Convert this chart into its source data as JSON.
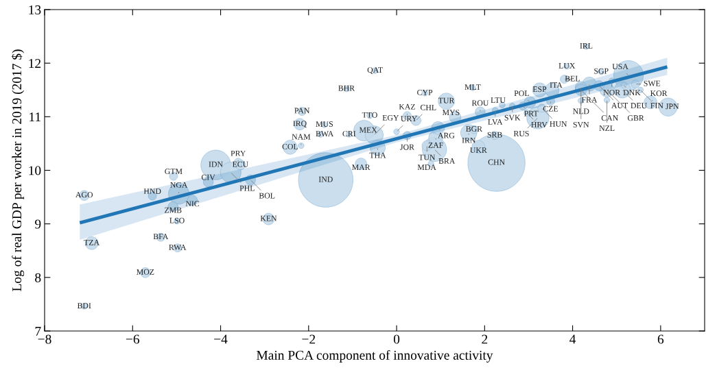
{
  "chart_data": {
    "type": "bubble",
    "xlabel": "Main PCA component of innovative activity",
    "ylabel": "Log of real GDP per worker in 2019 (2017 $)",
    "xlim": [
      -8,
      7
    ],
    "xticks": [
      -8,
      -6,
      -4,
      -2,
      0,
      2,
      4,
      6
    ],
    "ylim": [
      7,
      13
    ],
    "yticks": [
      7,
      8,
      9,
      10,
      11,
      12,
      13
    ],
    "grid": false,
    "series": [
      {
        "marker": "circle",
        "color": "#c4daeb",
        "x": [
          -7.1,
          -6.93,
          -7.1,
          -5.71,
          -5.36,
          -4.98,
          -4.99,
          -5.08,
          -5.55,
          -4.95,
          -4.64,
          -5.07,
          -4.28,
          -4.11,
          -3.55,
          -3.6,
          -3.77,
          -3.32,
          -2.91,
          -1.61,
          -2.42,
          -2.17,
          -2.15,
          -2.2,
          -1.64,
          -1.73,
          -1.08,
          -1.14,
          -0.49,
          -0.61,
          -0.74,
          -0.51,
          -0.43,
          -0.81,
          0.0,
          0.24,
          0.24,
          0.44,
          0.64,
          1.13,
          0.94,
          0.89,
          0.69,
          0.86,
          0.78,
          1.73,
          1.33,
          1.76,
          1.64,
          2.23,
          1.86,
          2.27,
          1.9,
          2.4,
          2.24,
          2.63,
          2.87,
          3.03,
          3.5,
          2.96,
          3.3,
          3.21,
          3.25,
          3.53,
          3.87,
          4.31,
          3.81,
          4.65,
          5.27,
          4.89,
          5.16,
          5.43,
          4.38,
          4.19,
          4.6,
          4.19,
          4.78,
          5.13,
          5.54,
          4.19,
          4.78,
          5.77,
          6.17
        ],
        "values": [
          9.53,
          8.64,
          7.46,
          8.09,
          8.75,
          8.55,
          9.05,
          9.32,
          9.52,
          9.56,
          9.44,
          9.89,
          9.78,
          10.1,
          10.1,
          10.15,
          9.96,
          9.82,
          9.09,
          9.82,
          10.43,
          10.46,
          11.1,
          10.86,
          10.85,
          10.67,
          10.67,
          11.52,
          11.86,
          11.02,
          10.74,
          10.66,
          10.42,
          10.12,
          10.72,
          10.65,
          11.02,
          10.93,
          11.44,
          11.29,
          10.79,
          10.61,
          10.46,
          10.39,
          10.12,
          11.54,
          10.99,
          10.76,
          10.7,
          10.65,
          10.44,
          10.14,
          11.09,
          11.22,
          11.12,
          11.2,
          11.2,
          11.27,
          11.29,
          11.07,
          11.16,
          10.98,
          11.5,
          11.5,
          11.94,
          12.31,
          11.7,
          11.84,
          11.77,
          11.67,
          11.59,
          11.61,
          11.61,
          11.55,
          11.58,
          11.5,
          11.5,
          11.5,
          11.5,
          11.3,
          11.31,
          11.27,
          11.18
        ],
        "sizes": [
          0.03,
          0.05,
          0.01,
          0.03,
          0.02,
          0.02,
          0.01,
          0.03,
          0.02,
          0.13,
          0.03,
          0.02,
          0.03,
          0.27,
          0.03,
          0.02,
          0.13,
          0.03,
          0.04,
          0.91,
          0.06,
          0.01,
          0.02,
          0.04,
          0.01,
          0.01,
          0.01,
          0.01,
          0.01,
          0.01,
          0.13,
          0.1,
          0.07,
          0.04,
          0.01,
          0.02,
          0.02,
          0.03,
          0.01,
          0.08,
          0.05,
          0.06,
          0.03,
          0.18,
          0.01,
          0.01,
          0.04,
          0.02,
          0.08,
          0.02,
          0.05,
          1.0,
          0.03,
          0.01,
          0.01,
          0.01,
          0.02,
          0.04,
          0.02,
          0.01,
          0.02,
          0.15,
          0.06,
          0.06,
          0.01,
          0.01,
          0.02,
          0.01,
          0.27,
          0.01,
          0.01,
          0.02,
          0.06,
          0.04,
          0.03,
          0.04,
          0.06,
          0.08,
          0.01,
          0.01,
          0.01,
          0.05,
          0.1
        ]
      },
      {
        "type": "line",
        "color": "#2176b5",
        "x": [
          -7.2,
          0,
          6.15
        ],
        "values": [
          9.02,
          10.59,
          11.93
        ],
        "lower": [
          8.7,
          10.52,
          11.78
        ],
        "upper": [
          9.36,
          10.66,
          12.1
        ]
      }
    ],
    "annotations": [
      {
        "text": "AGO",
        "x": -7.1,
        "y": 9.53
      },
      {
        "text": "TZA",
        "x": -6.93,
        "y": 8.64
      },
      {
        "text": "BDI",
        "x": -7.1,
        "y": 7.46
      },
      {
        "text": "MOZ",
        "x": -5.71,
        "y": 8.09
      },
      {
        "text": "BFA",
        "x": -5.36,
        "y": 8.75
      },
      {
        "text": "RWA",
        "x": -4.98,
        "y": 8.55
      },
      {
        "text": "LSO",
        "x": -4.99,
        "y": 9.05
      },
      {
        "text": "ZMB",
        "x": -5.08,
        "y": 9.32
      },
      {
        "text": "HND",
        "x": -5.55,
        "y": 9.52
      },
      {
        "text": "NGA",
        "x": -4.95,
        "y": 9.56
      },
      {
        "text": "NIC",
        "x": -4.64,
        "y": 9.44
      },
      {
        "text": "GTM",
        "x": -5.07,
        "y": 9.89
      },
      {
        "text": "CIV",
        "x": -4.28,
        "y": 9.78
      },
      {
        "text": "IDN",
        "x": -4.11,
        "y": 10.1
      },
      {
        "text": "ECU",
        "x": -3.55,
        "y": 10.1
      },
      {
        "text": "PRY",
        "x": -3.6,
        "y": 10.15
      },
      {
        "text": "PHL",
        "x": -3.77,
        "y": 9.96
      },
      {
        "text": "BOL",
        "x": -3.32,
        "y": 9.82
      },
      {
        "text": "KEN",
        "x": -2.91,
        "y": 9.09
      },
      {
        "text": "IND",
        "x": -1.61,
        "y": 9.82
      },
      {
        "text": "COL",
        "x": -2.42,
        "y": 10.43
      },
      {
        "text": "NAM",
        "x": -2.17,
        "y": 10.46
      },
      {
        "text": "PAN",
        "x": -2.15,
        "y": 11.1
      },
      {
        "text": "IRQ",
        "x": -2.2,
        "y": 10.86
      },
      {
        "text": "MUS",
        "x": -1.64,
        "y": 10.85
      },
      {
        "text": "BWA",
        "x": -1.73,
        "y": 10.67
      },
      {
        "text": "CRI",
        "x": -1.08,
        "y": 10.67
      },
      {
        "text": "BHR",
        "x": -1.14,
        "y": 11.52
      },
      {
        "text": "QAT",
        "x": -0.49,
        "y": 11.86
      },
      {
        "text": "TTO",
        "x": -0.61,
        "y": 11.02
      },
      {
        "text": "MEX",
        "x": -0.74,
        "y": 10.74
      },
      {
        "text": "EGY",
        "x": -0.51,
        "y": 10.66
      },
      {
        "text": "THA",
        "x": -0.43,
        "y": 10.42
      },
      {
        "text": "MAR",
        "x": -0.81,
        "y": 10.12
      },
      {
        "text": "URY",
        "x": 0.0,
        "y": 10.72
      },
      {
        "text": "JOR",
        "x": 0.24,
        "y": 10.65
      },
      {
        "text": "KAZ",
        "x": 0.24,
        "y": 11.02
      },
      {
        "text": "CHL",
        "x": 0.44,
        "y": 10.93
      },
      {
        "text": "CYP",
        "x": 0.64,
        "y": 11.44
      },
      {
        "text": "TUR",
        "x": 1.13,
        "y": 11.29
      },
      {
        "text": "ARG",
        "x": 0.94,
        "y": 10.79
      },
      {
        "text": "ZAF",
        "x": 0.89,
        "y": 10.61
      },
      {
        "text": "TUN",
        "x": 0.69,
        "y": 10.46
      },
      {
        "text": "BRA",
        "x": 0.86,
        "y": 10.39
      },
      {
        "text": "MDA",
        "x": 0.78,
        "y": 10.12
      },
      {
        "text": "MLT",
        "x": 1.73,
        "y": 11.54
      },
      {
        "text": "MYS",
        "x": 1.33,
        "y": 10.99
      },
      {
        "text": "BGR",
        "x": 1.76,
        "y": 10.76
      },
      {
        "text": "IRN",
        "x": 1.64,
        "y": 10.7
      },
      {
        "text": "SRB",
        "x": 2.23,
        "y": 10.65
      },
      {
        "text": "UKR",
        "x": 1.86,
        "y": 10.44
      },
      {
        "text": "CHN",
        "x": 2.27,
        "y": 10.14
      },
      {
        "text": "ROU",
        "x": 1.9,
        "y": 11.09
      },
      {
        "text": "LTU",
        "x": 2.4,
        "y": 11.22
      },
      {
        "text": "LVA",
        "x": 2.24,
        "y": 11.12
      },
      {
        "text": "SVK",
        "x": 2.63,
        "y": 11.2
      },
      {
        "text": "PRT",
        "x": 2.87,
        "y": 11.2
      },
      {
        "text": "POL",
        "x": 3.03,
        "y": 11.27
      },
      {
        "text": "CZE",
        "x": 3.5,
        "y": 11.29
      },
      {
        "text": "HRV",
        "x": 2.96,
        "y": 11.07
      },
      {
        "text": "HUN",
        "x": 3.3,
        "y": 11.16
      },
      {
        "text": "RUS",
        "x": 3.21,
        "y": 10.98
      },
      {
        "text": "ESP",
        "x": 3.25,
        "y": 11.5
      },
      {
        "text": "ITA",
        "x": 3.53,
        "y": 11.5
      },
      {
        "text": "LUX",
        "x": 3.87,
        "y": 11.94
      },
      {
        "text": "IRL",
        "x": 4.31,
        "y": 12.31
      },
      {
        "text": "BEL",
        "x": 3.81,
        "y": 11.7
      },
      {
        "text": "SGP",
        "x": 4.65,
        "y": 11.84
      },
      {
        "text": "USA",
        "x": 5.27,
        "y": 11.77
      },
      {
        "text": "NOR",
        "x": 4.89,
        "y": 11.67
      },
      {
        "text": "DNK",
        "x": 5.16,
        "y": 11.59
      },
      {
        "text": "SWE",
        "x": 5.43,
        "y": 11.61
      },
      {
        "text": "FRA",
        "x": 4.38,
        "y": 11.61
      },
      {
        "text": "NLD",
        "x": 4.19,
        "y": 11.55
      },
      {
        "text": "AUT",
        "x": 4.6,
        "y": 11.58
      },
      {
        "text": "CAN",
        "x": 4.19,
        "y": 11.5
      },
      {
        "text": "GBR",
        "x": 4.78,
        "y": 11.5
      },
      {
        "text": "DEU",
        "x": 5.13,
        "y": 11.5
      },
      {
        "text": "FIN",
        "x": 5.54,
        "y": 11.5
      },
      {
        "text": "SVN",
        "x": 4.19,
        "y": 11.3
      },
      {
        "text": "NZL",
        "x": 4.78,
        "y": 11.31
      },
      {
        "text": "KOR",
        "x": 5.77,
        "y": 11.27
      },
      {
        "text": "JPN",
        "x": 6.17,
        "y": 11.18
      }
    ]
  }
}
